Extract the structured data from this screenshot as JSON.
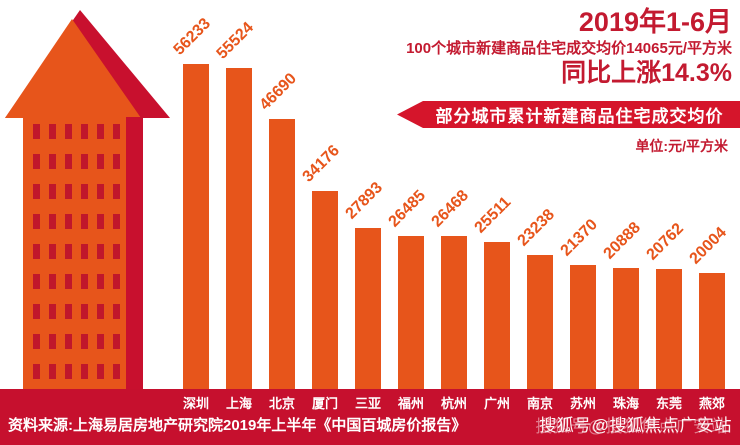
{
  "palette": {
    "bar_orange": "#e7551b",
    "title_red": "#c31a30",
    "ribbon_red": "#d5152b",
    "band_red": "#c6102e",
    "building_orange": "#e7551b",
    "building_shadow": "#c8102e",
    "window_red": "#c0172b",
    "text_white": "#ffffff"
  },
  "header": {
    "line1": "2019年1-6月",
    "line2": "100个城市新建商品住宅成交均价14065元/平方米",
    "line3": "同比上涨14.3%"
  },
  "ribbon": {
    "label": "部分城市累计新建商品住宅成交均价"
  },
  "unit_label": "单位:元/平方米",
  "chart_data": {
    "type": "bar",
    "title": "部分城市累计新建商品住宅成交均价",
    "subtitle": "2019年1-6月 100个城市新建商品住宅成交均价14065元/平方米 同比上涨14.3%",
    "unit": "元/平方米",
    "categories": [
      "深圳",
      "上海",
      "北京",
      "厦门",
      "三亚",
      "福州",
      "杭州",
      "广州",
      "南京",
      "苏州",
      "珠海",
      "东莞",
      "燕郊"
    ],
    "values": [
      56233,
      55524,
      46690,
      34176,
      27893,
      26485,
      26468,
      25511,
      23238,
      21370,
      20888,
      20762,
      20004
    ],
    "bar_color": "#e7551b",
    "value_label_rotation": -45,
    "ylim": [
      0,
      56233
    ],
    "grid": false,
    "legend": "none"
  },
  "footer": {
    "source": "资料来源:上海易居房地产研究院2019年上半年《中国百城房价报告》",
    "watermark": "搜狐号@搜狐焦点广安站"
  },
  "decor": {
    "building_icon": "arrow-shaped-building"
  }
}
